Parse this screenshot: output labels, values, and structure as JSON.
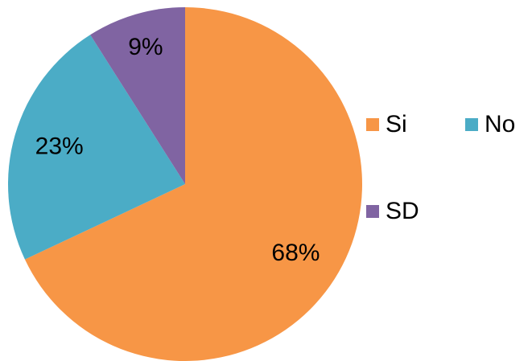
{
  "chart_data": {
    "type": "pie",
    "categories": [
      "Si",
      "No",
      "SD"
    ],
    "values": [
      68,
      23,
      9
    ],
    "value_labels": [
      "68%",
      "23%",
      "9%"
    ],
    "colors": [
      "#f79646",
      "#4bacc6",
      "#8064a2"
    ],
    "legend": "right"
  }
}
